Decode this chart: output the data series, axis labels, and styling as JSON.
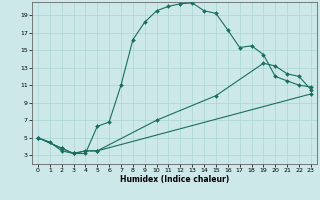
{
  "xlabel": "Humidex (Indice chaleur)",
  "bg_color": "#cce8e8",
  "grid_color": "#aad4d4",
  "line_color": "#1a6e60",
  "xlim": [
    -0.5,
    23.5
  ],
  "ylim": [
    2.0,
    20.5
  ],
  "xticks": [
    0,
    1,
    2,
    3,
    4,
    5,
    6,
    7,
    8,
    9,
    10,
    11,
    12,
    13,
    14,
    15,
    16,
    17,
    18,
    19,
    20,
    21,
    22,
    23
  ],
  "yticks": [
    3,
    5,
    7,
    9,
    11,
    13,
    15,
    17,
    19
  ],
  "line1_x": [
    0,
    1,
    2,
    3,
    4,
    5,
    6,
    7,
    8,
    9,
    10,
    11,
    12,
    13,
    14,
    15,
    16,
    17,
    18,
    19,
    20,
    21,
    22,
    23
  ],
  "line1_y": [
    5.0,
    4.5,
    3.5,
    3.2,
    3.2,
    6.3,
    6.8,
    11.0,
    16.2,
    18.2,
    19.5,
    20.0,
    20.3,
    20.4,
    19.5,
    19.2,
    17.3,
    15.3,
    15.5,
    14.5,
    12.0,
    11.5,
    11.0,
    10.8
  ],
  "line2_x": [
    0,
    2,
    3,
    4,
    5,
    10,
    15,
    19,
    20,
    21,
    22,
    23
  ],
  "line2_y": [
    5.0,
    3.8,
    3.2,
    3.5,
    3.5,
    7.0,
    9.8,
    13.5,
    13.2,
    12.3,
    12.0,
    10.5
  ],
  "line3_x": [
    0,
    2,
    3,
    4,
    5,
    23
  ],
  "line3_y": [
    5.0,
    3.8,
    3.2,
    3.5,
    3.5,
    10.0
  ],
  "markersize": 2.0,
  "linewidth": 0.8
}
